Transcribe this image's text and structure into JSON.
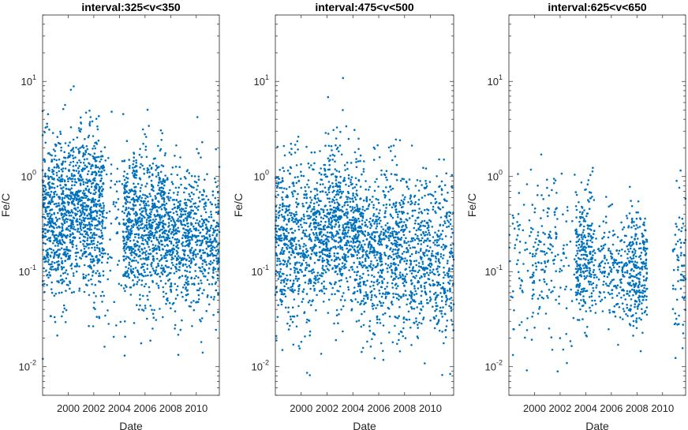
{
  "chart_data": [
    {
      "type": "scatter",
      "title": "interval:325<v<350",
      "xlabel": "Date",
      "ylabel": "Fe/C",
      "yscale": "log",
      "xlim": [
        1998.0,
        2011.8
      ],
      "ylim": [
        0.005,
        50
      ],
      "xticks": [
        "2000",
        "2002",
        "2004",
        "2006",
        "2008",
        "2010"
      ],
      "yticks": [
        {
          "base": "10",
          "exp": "-2"
        },
        {
          "base": "10",
          "exp": "-1"
        },
        {
          "base": "10",
          "exp": "0"
        },
        {
          "base": "10",
          "exp": "1"
        }
      ],
      "marker_color": "#0072bd",
      "note": "~2600 points; dense cluster 0.1-1, median ~0.3; gap between ~2002.8 and ~2004.3",
      "segments": [
        {
          "x0": 1998.0,
          "x1": 1999.9,
          "n": 500,
          "median": 0.35,
          "spread": 0.42
        },
        {
          "x0": 1999.9,
          "x1": 2002.8,
          "n": 750,
          "median": 0.42,
          "spread": 0.42
        },
        {
          "x0": 2002.8,
          "x1": 2004.3,
          "n": 60,
          "median": 0.3,
          "spread": 0.55
        },
        {
          "x0": 2004.3,
          "x1": 2007.6,
          "n": 800,
          "median": 0.28,
          "spread": 0.4
        },
        {
          "x0": 2007.6,
          "x1": 2011.8,
          "n": 750,
          "median": 0.22,
          "spread": 0.36
        }
      ]
    },
    {
      "type": "scatter",
      "title": "interval:475<v<500",
      "xlabel": "Date",
      "ylabel": "Fe/C",
      "yscale": "log",
      "xlim": [
        1998.0,
        2011.8
      ],
      "ylim": [
        0.005,
        50
      ],
      "xticks": [
        "2000",
        "2002",
        "2004",
        "2006",
        "2008",
        "2010"
      ],
      "yticks": [
        {
          "base": "10",
          "exp": "-2"
        },
        {
          "base": "10",
          "exp": "-1"
        },
        {
          "base": "10",
          "exp": "0"
        },
        {
          "base": "10",
          "exp": "1"
        }
      ],
      "marker_color": "#0072bd",
      "note": "~2500 points spread continuously; median ~0.15-0.3",
      "segments": [
        {
          "x0": 1998.0,
          "x1": 2001.0,
          "n": 550,
          "median": 0.2,
          "spread": 0.45
        },
        {
          "x0": 2001.0,
          "x1": 2004.5,
          "n": 750,
          "median": 0.28,
          "spread": 0.42
        },
        {
          "x0": 2004.5,
          "x1": 2008.0,
          "n": 650,
          "median": 0.17,
          "spread": 0.42
        },
        {
          "x0": 2008.0,
          "x1": 2011.8,
          "n": 550,
          "median": 0.14,
          "spread": 0.42
        }
      ]
    },
    {
      "type": "scatter",
      "title": "interval:625<v<650",
      "xlabel": "Date",
      "ylabel": "Fe/C",
      "yscale": "log",
      "xlim": [
        1998.0,
        2011.8
      ],
      "ylim": [
        0.005,
        50
      ],
      "xticks": [
        "2000",
        "2002",
        "2004",
        "2006",
        "2008",
        "2010"
      ],
      "yticks": [
        {
          "base": "10",
          "exp": "-2"
        },
        {
          "base": "10",
          "exp": "-1"
        },
        {
          "base": "10",
          "exp": "0"
        },
        {
          "base": "10",
          "exp": "1"
        }
      ],
      "marker_color": "#0072bd",
      "note": "~900 points in clusters; median ~0.1-0.15",
      "segments": [
        {
          "x0": 1998.0,
          "x1": 1999.8,
          "n": 60,
          "median": 0.12,
          "spread": 0.45
        },
        {
          "x0": 1999.8,
          "x1": 2001.8,
          "n": 130,
          "median": 0.13,
          "spread": 0.4
        },
        {
          "x0": 2001.8,
          "x1": 2003.2,
          "n": 40,
          "median": 0.13,
          "spread": 0.45
        },
        {
          "x0": 2003.2,
          "x1": 2004.6,
          "n": 260,
          "median": 0.15,
          "spread": 0.35
        },
        {
          "x0": 2004.6,
          "x1": 2007.4,
          "n": 220,
          "median": 0.11,
          "spread": 0.3
        },
        {
          "x0": 2007.4,
          "x1": 2008.8,
          "n": 250,
          "median": 0.1,
          "spread": 0.3
        },
        {
          "x0": 2010.8,
          "x1": 2011.8,
          "n": 70,
          "median": 0.12,
          "spread": 0.35
        }
      ]
    }
  ]
}
